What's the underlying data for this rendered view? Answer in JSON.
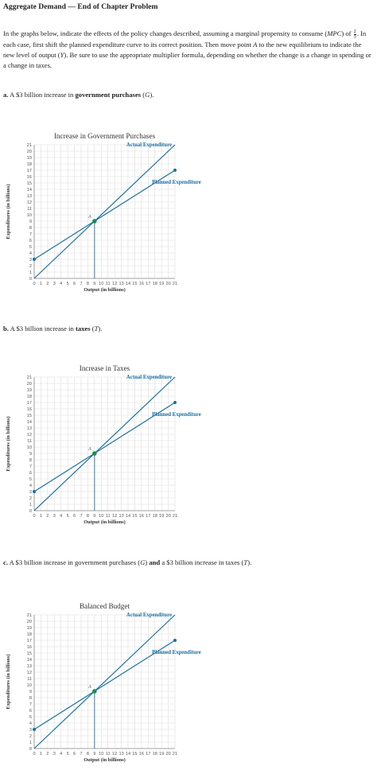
{
  "header": {
    "title": "Aggregate Demand — End of Chapter Problem"
  },
  "intro": {
    "part1": "In the graphs below, indicate the effects of the policy changes described, assuming a marginal propensity to consume (",
    "mpc": "MPC",
    "part2": ") of",
    "frac_num": "2",
    "frac_den": "3",
    "part3": ". In each case, first shift the planned expenditure curve to its correct position. Then move point ",
    "pointA": "A",
    "part4": " to the new equilibrium to indicate the new level of output (",
    "Y": "Y",
    "part5": "). Be sure to use the appropriate multiplier formula, depending on whether the change is a change in spending or a change in taxes."
  },
  "questions": [
    {
      "letter": "a.",
      "pre": " A $3 billion increase in ",
      "bold": "government purchases",
      "mid": " (",
      "var": "G",
      "post": ")."
    },
    {
      "letter": "b.",
      "pre": " A $3 billion increase in ",
      "bold": "taxes",
      "mid": " (",
      "var": "T",
      "post": ")."
    },
    {
      "letter": "c.",
      "pre": " A $3 billion increase in government purchases (",
      "var1": "G",
      "mid": ") ",
      "bold": "and",
      "mid2": " a $3 billion increase in taxes (",
      "var2": "T",
      "post": ")."
    }
  ],
  "chart_data": [
    {
      "type": "line",
      "title": "Increase in Government Purchases",
      "xlabel": "Output (in billions)",
      "ylabel": "Expenditures (in billions)",
      "xlim": [
        0,
        21
      ],
      "ylim": [
        0,
        21
      ],
      "grid": true,
      "x_ticks": [
        0,
        1,
        2,
        3,
        4,
        5,
        6,
        7,
        8,
        9,
        10,
        11,
        12,
        13,
        14,
        15,
        16,
        17,
        18,
        19,
        20,
        21
      ],
      "y_ticks": [
        0,
        1,
        2,
        3,
        4,
        5,
        6,
        7,
        8,
        9,
        10,
        11,
        12,
        13,
        14,
        15,
        16,
        17,
        18,
        19,
        20,
        21
      ],
      "series": [
        {
          "name": "Actual Expenditure",
          "x": [
            0,
            21
          ],
          "y": [
            0,
            21
          ]
        },
        {
          "name": "Planned Expenditure",
          "x": [
            0,
            21
          ],
          "y": [
            3,
            17
          ]
        }
      ],
      "point": {
        "label": "A",
        "x": 9,
        "y": 9
      },
      "colors": {
        "actual": "#1a6fa3",
        "planned": "#1a6fa3",
        "point": "#1e8a55",
        "grid": "#dddddd"
      }
    },
    {
      "type": "line",
      "title": "Increase in Taxes",
      "xlabel": "Output (in billions)",
      "ylabel": "Expenditures (in billions)",
      "xlim": [
        0,
        21
      ],
      "ylim": [
        0,
        21
      ],
      "grid": true,
      "x_ticks": [
        0,
        1,
        2,
        3,
        4,
        5,
        6,
        7,
        8,
        9,
        10,
        11,
        12,
        13,
        14,
        15,
        16,
        17,
        18,
        19,
        20,
        21
      ],
      "y_ticks": [
        0,
        1,
        2,
        3,
        4,
        5,
        6,
        7,
        8,
        9,
        10,
        11,
        12,
        13,
        14,
        15,
        16,
        17,
        18,
        19,
        20,
        21
      ],
      "series": [
        {
          "name": "Actual Expenditure",
          "x": [
            0,
            21
          ],
          "y": [
            0,
            21
          ]
        },
        {
          "name": "Planned Expenditure",
          "x": [
            0,
            21
          ],
          "y": [
            3,
            17
          ]
        }
      ],
      "point": {
        "label": "A",
        "x": 9,
        "y": 9
      },
      "colors": {
        "actual": "#1a6fa3",
        "planned": "#1a6fa3",
        "point": "#1e8a55",
        "grid": "#dddddd"
      }
    },
    {
      "type": "line",
      "title": "Balanced Budget",
      "xlabel": "Output (in billions)",
      "ylabel": "Expenditures (in billions)",
      "xlim": [
        0,
        21
      ],
      "ylim": [
        0,
        21
      ],
      "grid": true,
      "x_ticks": [
        0,
        1,
        2,
        3,
        4,
        5,
        6,
        7,
        8,
        9,
        10,
        11,
        12,
        13,
        14,
        15,
        16,
        17,
        18,
        19,
        20,
        21
      ],
      "y_ticks": [
        0,
        1,
        2,
        3,
        4,
        5,
        6,
        7,
        8,
        9,
        10,
        11,
        12,
        13,
        14,
        15,
        16,
        17,
        18,
        19,
        20,
        21
      ],
      "series": [
        {
          "name": "Actual Expenditure",
          "x": [
            0,
            21
          ],
          "y": [
            0,
            21
          ]
        },
        {
          "name": "Planned Expenditure",
          "x": [
            0,
            21
          ],
          "y": [
            3,
            17
          ]
        }
      ],
      "point": {
        "label": "A",
        "x": 9,
        "y": 9
      },
      "colors": {
        "actual": "#1a6fa3",
        "planned": "#1a6fa3",
        "point": "#1e8a55",
        "grid": "#dddddd"
      }
    }
  ]
}
